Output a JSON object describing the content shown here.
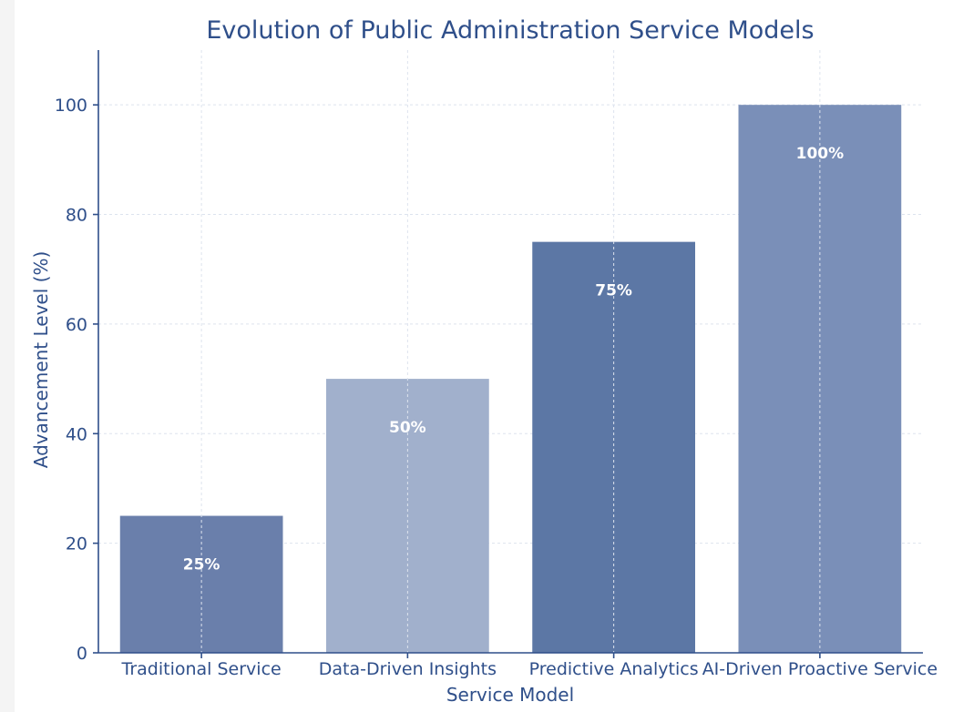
{
  "chart_data": {
    "type": "bar",
    "title": "Evolution of Public Administration Service Models",
    "xlabel": "Service Model",
    "ylabel": "Advancement Level (%)",
    "categories": [
      "Traditional Service",
      "Data-Driven Insights",
      "Predictive Analytics",
      "AI-Driven Proactive Service"
    ],
    "values": [
      25,
      50,
      75,
      100
    ],
    "data_labels": [
      "25%",
      "50%",
      "75%",
      "100%"
    ],
    "colors": [
      "#6a7fab",
      "#a1b0cc",
      "#5c77a5",
      "#7a8fb8"
    ],
    "ylim": [
      0,
      110
    ],
    "yticks": [
      0,
      20,
      40,
      60,
      80,
      100
    ],
    "grid": true
  }
}
